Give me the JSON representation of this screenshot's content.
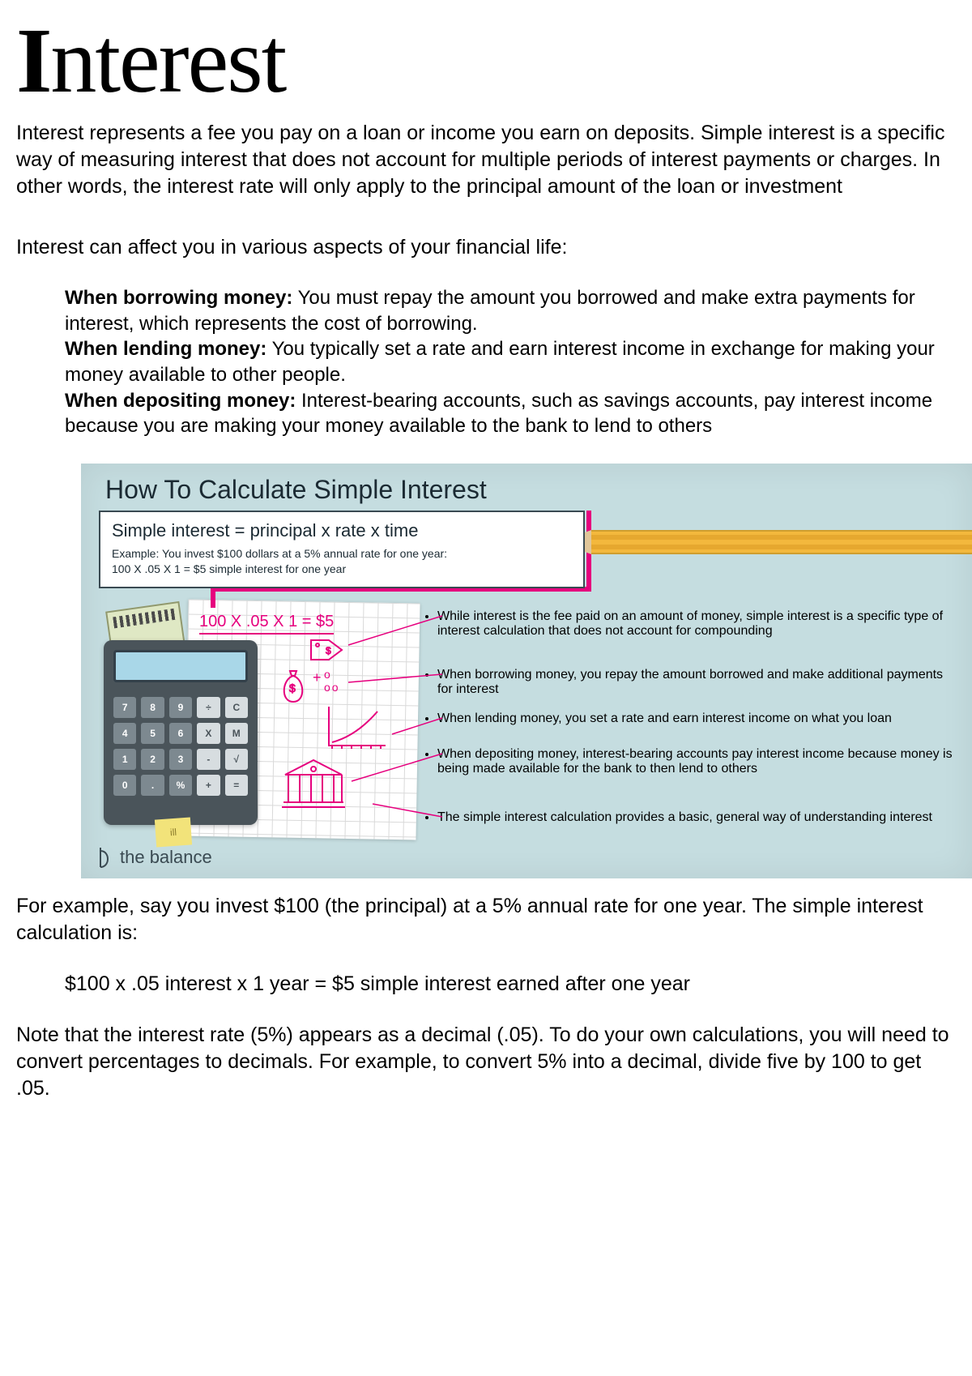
{
  "title_plain": "Interest",
  "intro": "Interest represents a fee you pay on a loan or income you earn on deposits. Simple interest is a specific way of measuring interest that does not account for multiple periods of interest payments or charges. In other words, the interest rate will only apply to the principal amount of the loan or investment",
  "lead": "Interest can affect you in various aspects of your financial life:",
  "aspects": [
    {
      "label": "When borrowing money:",
      "text": " You must repay the amount you borrowed and make extra payments for interest, which represents the cost of borrowing."
    },
    {
      "label": "When lending money:",
      "text": " You typically set a rate and earn interest income in exchange for making your money available to other people."
    },
    {
      "label": "When depositing money:",
      "text": " Interest-bearing accounts, such as savings accounts, pay interest income because you are making your money available to the bank to lend to others"
    }
  ],
  "panel": {
    "bg": "#c5dde0",
    "accent": "#e6007e",
    "title": "How To Calculate Simple Interest",
    "formula": "Simple interest = principal x rate x time",
    "example_l1": "Example: You invest $100 dollars at a 5% annual rate for one year:",
    "example_l2": "100 X .05 X 1 = $5 simple interest for one year",
    "equation": "100 X .05 X 1 = $5",
    "bullets": [
      "While interest is the fee paid on an amount of money, simple interest is a specific type of interest calculation that does not account for compounding",
      "When borrowing money, you repay the amount borrowed and make additional payments for interest",
      "When lending money, you set a rate and earn interest income on what you loan",
      "When depositing money, interest-bearing accounts pay interest income because money is being made available for the bank to then lend to others",
      "The simple interest calculation provides a basic, general way of understanding interest"
    ],
    "bullet_tops": [
      180,
      252,
      306,
      350,
      428
    ],
    "brand": "the balance",
    "sticky": "ill",
    "calc_keys": [
      [
        "7",
        "8",
        "9",
        "÷",
        "C"
      ],
      [
        "4",
        "5",
        "6",
        "X",
        "M"
      ],
      [
        "1",
        "2",
        "3",
        "-",
        "√"
      ],
      [
        "0",
        ".",
        "%",
        "+",
        "="
      ]
    ],
    "calc_dark_cols": [
      3,
      4
    ],
    "pencil": {
      "body": "#f3b83d",
      "wood": "#e0c69a",
      "graphite": "#3a4a52"
    }
  },
  "after": {
    "p1": "For example, say you invest $100 (the principal) at a 5% annual rate for one year. The simple interest calculation is:",
    "calc": "$100 x .05 interest x 1 year = $5 simple interest earned after one year",
    "p2": "Note that the interest rate (5%) appears as a decimal (.05). To do your own calculations, you will need to convert percentages to decimals. For example, to convert 5% into a decimal, divide five by 100 to get .05."
  }
}
